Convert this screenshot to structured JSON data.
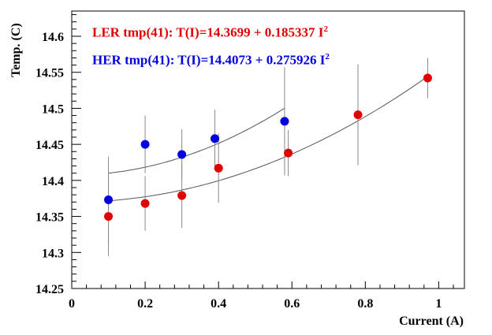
{
  "chart_data": {
    "type": "scatter",
    "title": "",
    "xlabel": "Current (A)",
    "ylabel": "Temp. (C)",
    "xlim": [
      0,
      1.07
    ],
    "ylim": [
      14.25,
      14.635
    ],
    "x_ticks": [
      "0",
      "0.2",
      "0.4",
      "0.6",
      "0.8",
      "1"
    ],
    "y_ticks": [
      "14.25",
      "14.3",
      "14.35",
      "14.4",
      "14.45",
      "14.5",
      "14.55",
      "14.6"
    ],
    "grid": false,
    "series": [
      {
        "name": "LER",
        "color": "#e00000",
        "annotation": {
          "label": "LER tmp(41): T(I)=14.3699 + 0.185337 I",
          "exponent": "2"
        },
        "fit": {
          "a": 14.3699,
          "b": 0.185337,
          "x_range": [
            0.1,
            0.97
          ]
        },
        "points": [
          {
            "x": 0.1,
            "y": 14.35,
            "err": 0.055
          },
          {
            "x": 0.2,
            "y": 14.368,
            "err": 0.038
          },
          {
            "x": 0.3,
            "y": 14.379,
            "err": 0.045
          },
          {
            "x": 0.4,
            "y": 14.417,
            "err": 0.048
          },
          {
            "x": 0.59,
            "y": 14.438,
            "err": 0.032
          },
          {
            "x": 0.78,
            "y": 14.491,
            "err": 0.07
          },
          {
            "x": 0.97,
            "y": 14.542,
            "err": 0.028
          }
        ]
      },
      {
        "name": "HER",
        "color": "#0000e0",
        "annotation": {
          "label": "HER tmp(41): T(I)=14.4073 + 0.275926 I",
          "exponent": "2"
        },
        "fit": {
          "a": 14.4073,
          "b": 0.275926,
          "x_range": [
            0.1,
            0.58
          ]
        },
        "points": [
          {
            "x": 0.1,
            "y": 14.373,
            "err": 0.06
          },
          {
            "x": 0.2,
            "y": 14.45,
            "err": 0.04
          },
          {
            "x": 0.3,
            "y": 14.436,
            "err": 0.035
          },
          {
            "x": 0.39,
            "y": 14.458,
            "err": 0.04
          },
          {
            "x": 0.58,
            "y": 14.482,
            "err": 0.075
          }
        ]
      }
    ]
  }
}
